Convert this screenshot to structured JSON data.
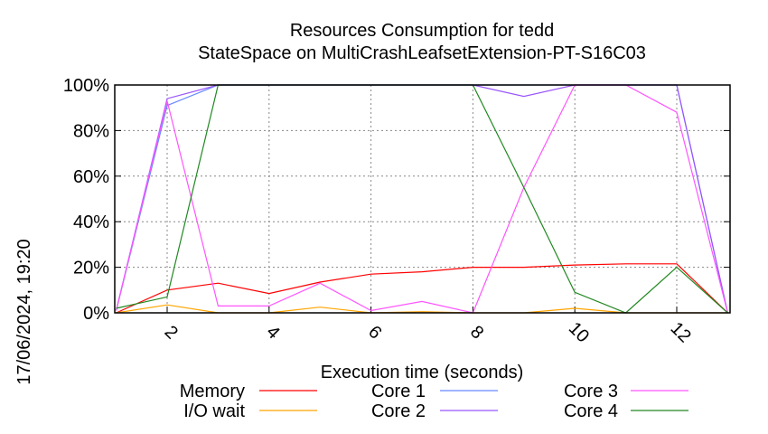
{
  "chart_data": {
    "type": "line",
    "title": "Resources Consumption for tedd",
    "subtitle": "StateSpace on MultiCrashLeafsetExtension-PT-S16C03",
    "xlabel": "Execution time (seconds)",
    "ylabel": "17/06/2024, 19:20",
    "xlim": [
      1,
      13
    ],
    "ylim": [
      0,
      100
    ],
    "grid": true,
    "x_ticks": [
      "2",
      "4",
      "6",
      "8",
      "10",
      "12"
    ],
    "x_tick_values": [
      2,
      4,
      6,
      8,
      10,
      12
    ],
    "y_ticks": [
      "0%",
      "20%",
      "40%",
      "60%",
      "80%",
      "100%"
    ],
    "y_tick_values": [
      0,
      20,
      40,
      60,
      80,
      100
    ],
    "legend_position": "bottom",
    "x": [
      1,
      2,
      3,
      4,
      5,
      6,
      7,
      8,
      9,
      10,
      11,
      12,
      13
    ],
    "series": [
      {
        "name": "Memory",
        "color": "#ff0000",
        "values": [
          0,
          10,
          13,
          8.5,
          13.5,
          17,
          18,
          20,
          20,
          21,
          21.5,
          21.5,
          0
        ]
      },
      {
        "name": "I/O wait",
        "color": "#ffa500",
        "values": [
          0,
          3.5,
          0,
          0,
          2.5,
          0,
          0.5,
          0,
          0,
          2,
          0,
          0,
          0
        ]
      },
      {
        "name": "Core 1",
        "color": "#6688ff",
        "values": [
          1,
          91,
          100,
          100,
          100,
          100,
          100,
          100,
          100,
          100,
          100,
          100,
          0
        ]
      },
      {
        "name": "Core 2",
        "color": "#9955ff",
        "values": [
          1,
          94,
          100,
          100,
          100,
          100,
          100,
          100,
          95,
          100,
          100,
          100,
          0
        ]
      },
      {
        "name": "Core 3",
        "color": "#ff55ff",
        "values": [
          1,
          93,
          3,
          3,
          13,
          1,
          5,
          0,
          55,
          100,
          100,
          88,
          0
        ]
      },
      {
        "name": "Core 4",
        "color": "#228822",
        "values": [
          2,
          7,
          100,
          100,
          100,
          100,
          100,
          100,
          55,
          9,
          0,
          20,
          0
        ]
      }
    ]
  }
}
